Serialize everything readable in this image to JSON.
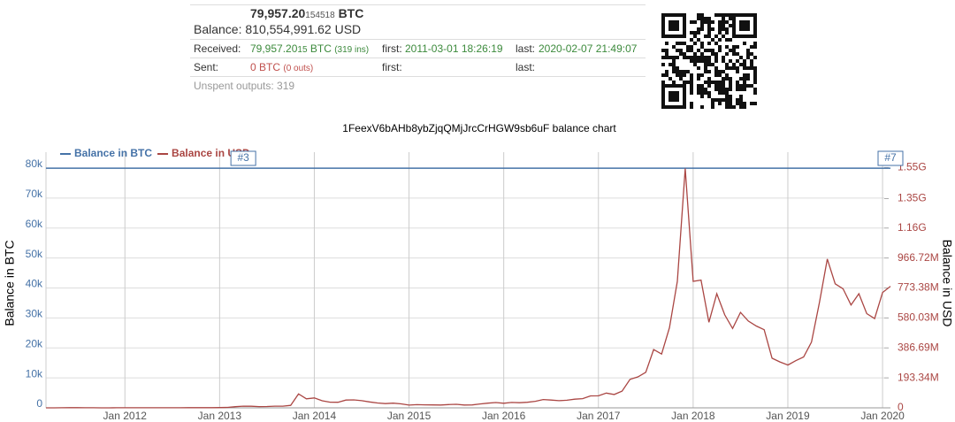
{
  "summary": {
    "balance_btc": "79,957.20",
    "balance_btc_small": "154518",
    "balance_unit": "BTC",
    "balance_label": "Balance:",
    "balance_usd": "810,554,991.62 USD",
    "received": {
      "label": "Received:",
      "amount": "79,957.20",
      "amount_small": "15",
      "unit": "BTC",
      "ins": "(319 ins)",
      "first_label": "first:",
      "first": "2011-03-01 18:26:19",
      "last_label": "last:",
      "last": "2020-02-07 21:49:07"
    },
    "sent": {
      "label": "Sent:",
      "amount": "0 BTC",
      "outs": "(0 outs)",
      "first_label": "first:",
      "last_label": "last:"
    },
    "unspent": "Unspent outputs: 319"
  },
  "chart_data": {
    "type": "line",
    "title": "1FeexV6bAHb8ybZjqQMjJrcCrHGW9sb6uF balance chart",
    "y_label": "Balance in BTC",
    "y2_label": "Balance in USD",
    "xlim": [
      "2011-03",
      "2020-02"
    ],
    "xticks": [
      {
        "value": "2012-01",
        "label": "Jan 2012"
      },
      {
        "value": "2013-01",
        "label": "Jan 2013"
      },
      {
        "value": "2014-01",
        "label": "Jan 2014"
      },
      {
        "value": "2015-01",
        "label": "Jan 2015"
      },
      {
        "value": "2016-01",
        "label": "Jan 2016"
      },
      {
        "value": "2017-01",
        "label": "Jan 2017"
      },
      {
        "value": "2018-01",
        "label": "Jan 2018"
      },
      {
        "value": "2019-01",
        "label": "Jan 2019"
      },
      {
        "value": "2020-01",
        "label": "Jan 2020"
      }
    ],
    "ylim": [
      0,
      80000
    ],
    "yticks": [
      0,
      {
        "value": 10000,
        "label": "10k"
      },
      {
        "value": 20000,
        "label": "20k"
      },
      {
        "value": 30000,
        "label": "30k"
      },
      {
        "value": 40000,
        "label": "40k"
      },
      {
        "value": 50000,
        "label": "50k"
      },
      {
        "value": 60000,
        "label": "60k"
      },
      {
        "value": 70000,
        "label": "70k"
      },
      {
        "value": 80000,
        "label": "80k"
      }
    ],
    "y2lim": [
      0,
      1546750000
    ],
    "y2ticks": [
      0,
      {
        "value": 193340000,
        "label": "193.34M"
      },
      {
        "value": 386690000,
        "label": "386.69M"
      },
      {
        "value": 580030000,
        "label": "580.03M"
      },
      {
        "value": 773380000,
        "label": "773.38M"
      },
      {
        "value": 966720000,
        "label": "966.72M"
      },
      {
        "value": 1160000000,
        "label": "1.16G"
      },
      {
        "value": 1350000000,
        "label": "1.35G"
      },
      {
        "value": 1550000000,
        "label": "1.55G"
      }
    ],
    "grid": true,
    "annotations": [
      {
        "text": "#3",
        "x": "2013-04"
      },
      {
        "text": "#7",
        "x": "2020-02"
      }
    ],
    "x": [
      "2011-03",
      "2011-04",
      "2011-05",
      "2011-06",
      "2011-07",
      "2011-08",
      "2011-09",
      "2011-10",
      "2011-11",
      "2011-12",
      "2012-01",
      "2012-02",
      "2012-03",
      "2012-04",
      "2012-05",
      "2012-06",
      "2012-07",
      "2012-08",
      "2012-09",
      "2012-10",
      "2012-11",
      "2012-12",
      "2013-01",
      "2013-02",
      "2013-03",
      "2013-04",
      "2013-05",
      "2013-06",
      "2013-07",
      "2013-08",
      "2013-09",
      "2013-10",
      "2013-11",
      "2013-12",
      "2014-01",
      "2014-02",
      "2014-03",
      "2014-04",
      "2014-05",
      "2014-06",
      "2014-07",
      "2014-08",
      "2014-09",
      "2014-10",
      "2014-11",
      "2014-12",
      "2015-01",
      "2015-02",
      "2015-03",
      "2015-04",
      "2015-05",
      "2015-06",
      "2015-07",
      "2015-08",
      "2015-09",
      "2015-10",
      "2015-11",
      "2015-12",
      "2016-01",
      "2016-02",
      "2016-03",
      "2016-04",
      "2016-05",
      "2016-06",
      "2016-07",
      "2016-08",
      "2016-09",
      "2016-10",
      "2016-11",
      "2016-12",
      "2017-01",
      "2017-02",
      "2017-03",
      "2017-04",
      "2017-05",
      "2017-06",
      "2017-07",
      "2017-08",
      "2017-09",
      "2017-10",
      "2017-11",
      "2017-12",
      "2018-01",
      "2018-02",
      "2018-03",
      "2018-04",
      "2018-05",
      "2018-06",
      "2018-07",
      "2018-08",
      "2018-09",
      "2018-10",
      "2018-11",
      "2018-12",
      "2019-01",
      "2019-02",
      "2019-03",
      "2019-04",
      "2019-05",
      "2019-06",
      "2019-07",
      "2019-08",
      "2019-09",
      "2019-10",
      "2019-11",
      "2019-12",
      "2020-01",
      "2020-02"
    ],
    "series": [
      {
        "name": "Balance in BTC",
        "color": "#4572a7",
        "x": [
          "2011-03",
          "2020-02"
        ],
        "values": [
          79957.2,
          79957.2
        ]
      },
      {
        "name": "Balance in USD",
        "color": "#aa4643",
        "axis": "y2",
        "values": [
          72000,
          280000,
          696000,
          1280000,
          1040000,
          640000,
          400000,
          264000,
          240000,
          376000,
          440000,
          392000,
          392000,
          400000,
          416000,
          536000,
          720000,
          800000,
          960000,
          880000,
          1000000,
          1080000,
          1600000,
          2640000,
          7440000,
          11120000,
          10320000,
          7760000,
          8480000,
          10800000,
          10640000,
          15840000,
          90400000,
          58400000,
          64000000,
          45600000,
          36800000,
          36000000,
          50400000,
          51200000,
          46400000,
          38400000,
          31200000,
          27200000,
          30400000,
          25600000,
          17600000,
          20400000,
          19600000,
          18800000,
          18400000,
          21040000,
          22800000,
          18400000,
          18960000,
          25200000,
          30160000,
          34400000,
          29600000,
          34960000,
          33280000,
          35840000,
          42400000,
          53600000,
          50000000,
          46000000,
          48800000,
          56000000,
          59600000,
          76800000,
          77600000,
          95200000,
          86400000,
          108000000,
          184000000,
          200000000,
          229600000,
          376000000,
          347200000,
          517600000,
          816000000,
          1544000000,
          816000000,
          824000000,
          552000000,
          736000000,
          600000000,
          512000000,
          616000000,
          560000000,
          528000000,
          504000000,
          320000000,
          296000000,
          276000000,
          304000000,
          328000000,
          424000000,
          680000000,
          960000000,
          800000000,
          768000000,
          664000000,
          736000000,
          608000000,
          576000000,
          744000000,
          784000000
        ]
      }
    ]
  }
}
